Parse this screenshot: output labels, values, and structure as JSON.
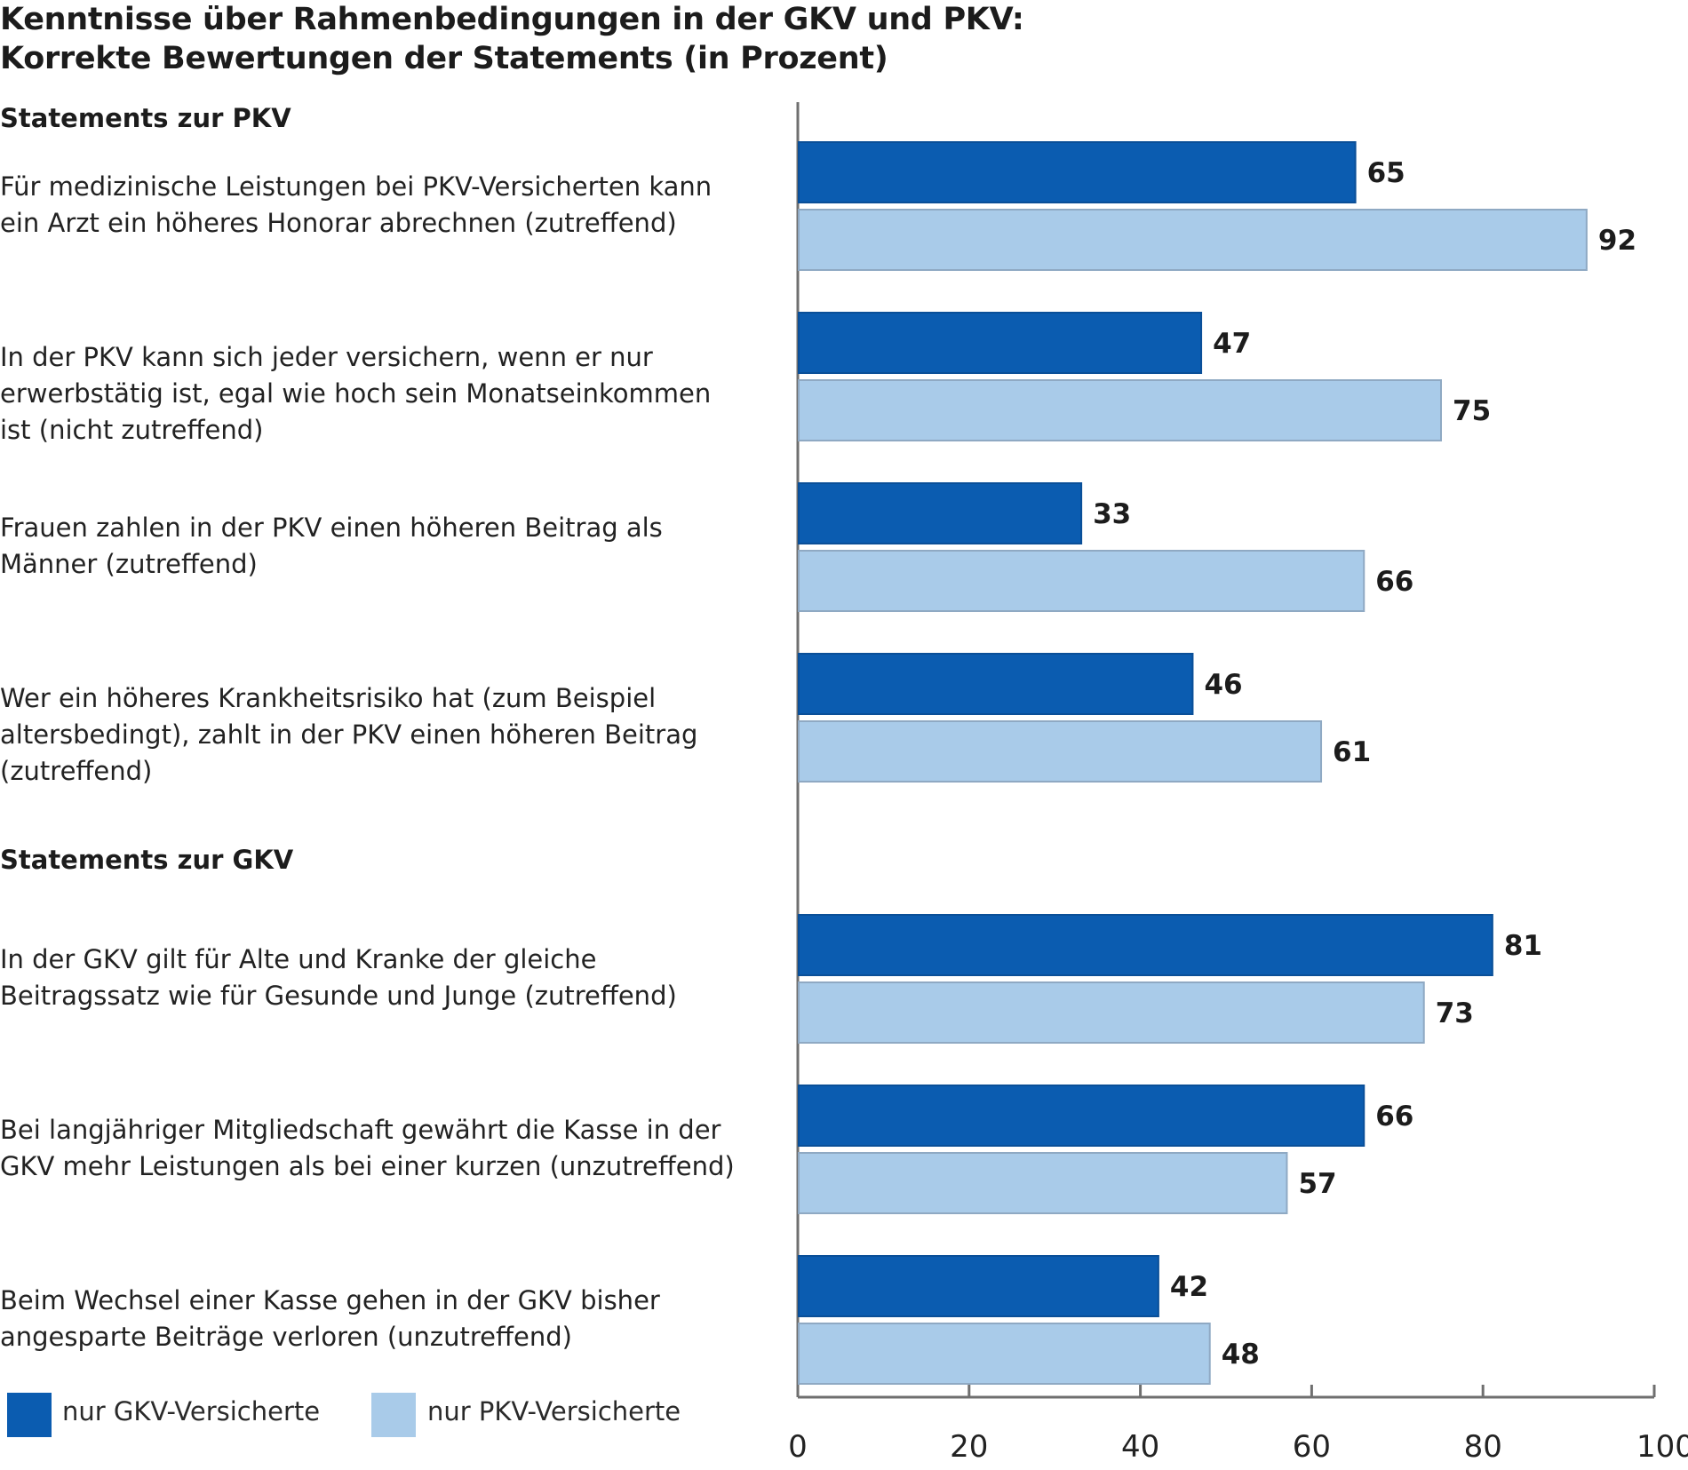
{
  "chart_data": {
    "type": "bar",
    "orientation": "horizontal",
    "title": "Kenntnisse über Rahmenbedingungen in der GKV und PKV:",
    "subtitle": "Korrekte Bewertungen der Statements (in Prozent)",
    "groups": [
      {
        "name": "Statements zur PKV",
        "statements": [
          {
            "lines": [
              "Für medizinische Leistungen bei PKV-Versicherten kann",
              "ein Arzt ein höheres Honorar abrechnen (zutreffend)"
            ],
            "gkv": 65,
            "pkv": 92
          },
          {
            "lines": [
              "In der PKV kann sich jeder versichern, wenn er nur",
              "erwerbstätig ist, egal wie hoch sein Monatseinkommen",
              "ist (nicht zutreffend)"
            ],
            "gkv": 47,
            "pkv": 75
          },
          {
            "lines": [
              "Frauen zahlen in der PKV einen höheren Beitrag als",
              "Männer (zutreffend)"
            ],
            "gkv": 33,
            "pkv": 66
          },
          {
            "lines": [
              "Wer ein höheres Krankheitsrisiko hat (zum Beispiel",
              "altersbedingt), zahlt in der PKV einen höheren Beitrag",
              "(zutreffend)"
            ],
            "gkv": 46,
            "pkv": 61
          }
        ]
      },
      {
        "name": "Statements zur GKV",
        "statements": [
          {
            "lines": [
              "In der GKV gilt für Alte und Kranke der gleiche",
              "Beitragssatz wie für Gesunde und Junge (zutreffend)"
            ],
            "gkv": 81,
            "pkv": 73
          },
          {
            "lines": [
              "Bei langjähriger Mitgliedschaft gewährt die Kasse in der",
              "GKV mehr Leistungen als bei einer kurzen (unzutreffend)"
            ],
            "gkv": 66,
            "pkv": 57
          },
          {
            "lines": [
              "Beim Wechsel einer Kasse gehen in der GKV bisher",
              "angesparte Beiträge verloren (unzutreffend)"
            ],
            "gkv": 42,
            "pkv": 48
          }
        ]
      }
    ],
    "series": [
      {
        "key": "gkv",
        "name": "nur GKV-Versicherte",
        "color": "#0b5cb0"
      },
      {
        "key": "pkv",
        "name": "nur PKV-Versicherte",
        "color": "#a9cbe9"
      }
    ],
    "xlim": [
      0,
      100
    ],
    "xticks": [
      0,
      20,
      40,
      60,
      80,
      100
    ],
    "xtick_labels": [
      "0",
      "20",
      "40",
      "60",
      "80",
      "100"
    ],
    "grid": false,
    "legend_position": "bottom-left"
  }
}
